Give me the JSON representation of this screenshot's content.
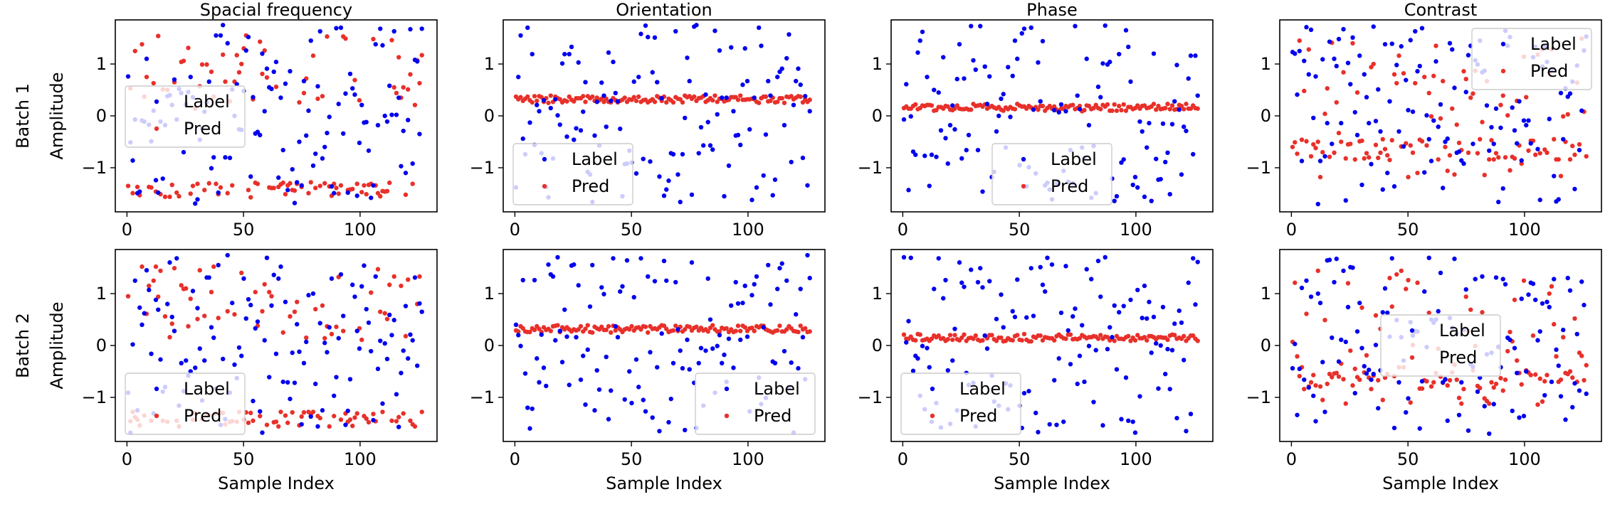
{
  "figure": {
    "row_labels": [
      "Batch 1",
      "Batch 2"
    ],
    "ylabel": "Amplitude",
    "xlabel": "Sample Index",
    "legend_labels": [
      "Label",
      "Pred"
    ]
  },
  "colors": {
    "label": "#0000ee",
    "pred": "#e8302a",
    "axes": "#000000",
    "legend_border": "#cccccc"
  },
  "chart_data": [
    {
      "type": "scatter",
      "row": "Batch 1",
      "title": "Spacial frequency",
      "xlabel": "",
      "ylabel": "Amplitude",
      "xlim": [
        -5,
        133
      ],
      "ylim": [
        -1.85,
        1.85
      ],
      "xticks": [
        0,
        50,
        100
      ],
      "yticks": [
        -1,
        0,
        1
      ],
      "legend": "center-left",
      "pred_pattern": "bimodal",
      "grid": false,
      "series": [
        {
          "name": "Label",
          "values": []
        },
        {
          "name": "Pred",
          "values": []
        }
      ]
    },
    {
      "type": "scatter",
      "row": "Batch 1",
      "title": "Orientation",
      "xlabel": "",
      "ylabel": "",
      "xlim": [
        -5,
        133
      ],
      "ylim": [
        -1.85,
        1.85
      ],
      "xticks": [
        0,
        50,
        100
      ],
      "yticks": [
        -1,
        0,
        1
      ],
      "legend": "lower-left",
      "pred_pattern": "flat",
      "pred_level": 0.32,
      "grid": false,
      "series": [
        {
          "name": "Label",
          "values": []
        },
        {
          "name": "Pred",
          "values": []
        }
      ]
    },
    {
      "type": "scatter",
      "row": "Batch 1",
      "title": "Phase",
      "xlabel": "",
      "ylabel": "",
      "xlim": [
        -5,
        133
      ],
      "ylim": [
        -1.85,
        1.85
      ],
      "xticks": [
        0,
        50,
        100
      ],
      "yticks": [
        -1,
        0,
        1
      ],
      "legend": "lower-center",
      "pred_pattern": "flat",
      "pred_level": 0.16,
      "grid": false,
      "series": [
        {
          "name": "Label",
          "values": []
        },
        {
          "name": "Pred",
          "values": []
        }
      ]
    },
    {
      "type": "scatter",
      "row": "Batch 1",
      "title": "Contrast",
      "xlabel": "",
      "ylabel": "",
      "xlim": [
        -5,
        133
      ],
      "ylim": [
        -1.85,
        1.85
      ],
      "xticks": [
        0,
        50,
        100
      ],
      "yticks": [
        -1,
        0,
        1
      ],
      "legend": "upper-right",
      "pred_pattern": "spread",
      "grid": false,
      "series": [
        {
          "name": "Label",
          "values": []
        },
        {
          "name": "Pred",
          "values": []
        }
      ]
    },
    {
      "type": "scatter",
      "row": "Batch 2",
      "title": "",
      "xlabel": "Sample Index",
      "ylabel": "Amplitude",
      "xlim": [
        -5,
        133
      ],
      "ylim": [
        -1.85,
        1.85
      ],
      "xticks": [
        0,
        50,
        100
      ],
      "yticks": [
        -1,
        0,
        1
      ],
      "legend": "lower-left",
      "pred_pattern": "bimodal",
      "grid": false,
      "series": [
        {
          "name": "Label",
          "values": []
        },
        {
          "name": "Pred",
          "values": []
        }
      ]
    },
    {
      "type": "scatter",
      "row": "Batch 2",
      "title": "",
      "xlabel": "Sample Index",
      "ylabel": "",
      "xlim": [
        -5,
        133
      ],
      "ylim": [
        -1.85,
        1.85
      ],
      "xticks": [
        0,
        50,
        100
      ],
      "yticks": [
        -1,
        0,
        1
      ],
      "legend": "lower-right",
      "pred_pattern": "flat",
      "pred_level": 0.32,
      "grid": false,
      "series": [
        {
          "name": "Label",
          "values": []
        },
        {
          "name": "Pred",
          "values": []
        }
      ]
    },
    {
      "type": "scatter",
      "row": "Batch 2",
      "title": "",
      "xlabel": "Sample Index",
      "ylabel": "",
      "xlim": [
        -5,
        133
      ],
      "ylim": [
        -1.85,
        1.85
      ],
      "xticks": [
        0,
        50,
        100
      ],
      "yticks": [
        -1,
        0,
        1
      ],
      "legend": "lower-left",
      "pred_pattern": "flat",
      "pred_level": 0.15,
      "grid": false,
      "series": [
        {
          "name": "Label",
          "values": []
        },
        {
          "name": "Pred",
          "values": []
        }
      ]
    },
    {
      "type": "scatter",
      "row": "Batch 2",
      "title": "",
      "xlabel": "Sample Index",
      "ylabel": "",
      "xlim": [
        -5,
        133
      ],
      "ylim": [
        -1.85,
        1.85
      ],
      "xticks": [
        0,
        50,
        100
      ],
      "yticks": [
        -1,
        0,
        1
      ],
      "legend": "center",
      "pred_pattern": "spread",
      "grid": false,
      "series": [
        {
          "name": "Label",
          "values": []
        },
        {
          "name": "Pred",
          "values": []
        }
      ]
    }
  ]
}
